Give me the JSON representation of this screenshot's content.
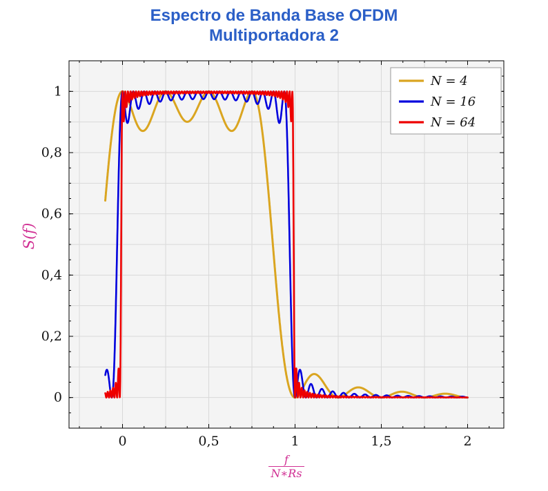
{
  "title": {
    "line1": "Espectro de Banda Base OFDM",
    "line2": "Multiportadora 2",
    "color": "#2b5fc7"
  },
  "chart_data": {
    "type": "line",
    "model": "ofdm_baseband_spectrum",
    "model_formula": "S(u) = sum_{k=0}^{N-1} sinc^2(N*u - k), sinc(x)=sin(pi*x)/(pi*x), u = f/(N*Rs)",
    "band": [
      0,
      1
    ],
    "plateau_level": 1.0,
    "inband_ripple_min": {
      "N4": 0.87,
      "N16": 0.95,
      "N64": 0.99
    },
    "first_sidelobe": {
      "N4": 0.075,
      "N16": 0.05,
      "N64": 0.02
    },
    "x": {
      "min": -0.31,
      "max": 2.21,
      "label_numerator": "f",
      "label_denominator": "N∗Rs",
      "label_color": "#d02f93",
      "ticks": [
        {
          "v": 0,
          "label": "0"
        },
        {
          "v": 0.5,
          "label": "0,5"
        },
        {
          "v": 1,
          "label": "1"
        },
        {
          "v": 1.5,
          "label": "1,5"
        },
        {
          "v": 2,
          "label": "2"
        }
      ],
      "minor_tick_step": 0.125,
      "grid_step": 0.25
    },
    "y": {
      "min": -0.1,
      "max": 1.1,
      "label": "S(f)",
      "label_color": "#d02f93",
      "ticks": [
        {
          "v": 0,
          "label": "0"
        },
        {
          "v": 0.2,
          "label": "0,2"
        },
        {
          "v": 0.4,
          "label": "0,4"
        },
        {
          "v": 0.6,
          "label": "0,6"
        },
        {
          "v": 0.8,
          "label": "0,8"
        },
        {
          "v": 1,
          "label": "1"
        }
      ],
      "minor_tick_step": 0.05,
      "grid_step": 0.1
    },
    "series": [
      {
        "name": "N = 4",
        "N": 4,
        "color": "#DAA520",
        "width": 3.0
      },
      {
        "name": "N = 16",
        "N": 16,
        "color": "#0000DD",
        "width": 2.6
      },
      {
        "name": "N = 64",
        "N": 64,
        "color": "#EE0000",
        "width": 2.6
      }
    ],
    "sampling": {
      "x_start": -0.1,
      "x_end": 2.0,
      "samples": 2101
    },
    "legend": {
      "position": "top-right",
      "entries": [
        "N = 4",
        "N = 16",
        "N = 64"
      ]
    },
    "style": {
      "plot_bg": "#f4f4f4",
      "grid": "#d9d9d9",
      "frame": "#000000",
      "legend_border": "#999999",
      "legend_bg": "#ffffff"
    }
  }
}
